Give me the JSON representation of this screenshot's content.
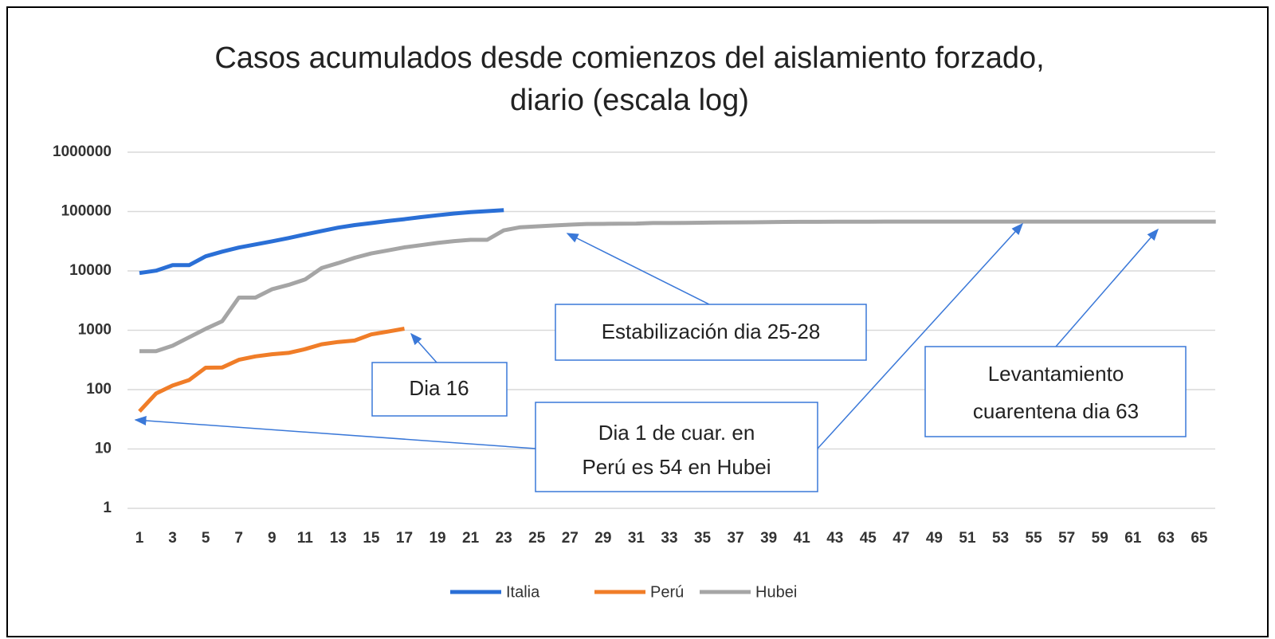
{
  "chart_data": {
    "type": "line",
    "title": [
      "Casos acumulados desde comienzos del aislamiento forzado,",
      "diario (escala log)"
    ],
    "categories": [
      1,
      null,
      3,
      null,
      5,
      null,
      7,
      null,
      9,
      null,
      11,
      null,
      13,
      null,
      15,
      null,
      17,
      null,
      19,
      null,
      21,
      null,
      23,
      null,
      25,
      null,
      27,
      null,
      29,
      null,
      31,
      null,
      33,
      null,
      35,
      null,
      37,
      null,
      39,
      null,
      41,
      null,
      43,
      null,
      45,
      null,
      47,
      null,
      49,
      null,
      51,
      null,
      53,
      null,
      55,
      null,
      57,
      null,
      59,
      null,
      61,
      null,
      63,
      null,
      65,
      null
    ],
    "series": [
      {
        "name": "Italia",
        "color": "#2a6fd6",
        "values": [
          9200,
          10100,
          12500,
          12500,
          17600,
          21100,
          24700,
          27900,
          31500,
          35700,
          41000,
          47000,
          53600,
          59100,
          63900,
          69200,
          74400,
          80600,
          86500,
          92500,
          97700,
          101700,
          105800,
          null,
          null,
          null,
          null,
          null,
          null,
          null,
          null,
          null,
          null,
          null,
          null,
          null,
          null,
          null,
          null,
          null,
          null,
          null,
          null,
          null,
          null,
          null,
          null,
          null,
          null,
          null,
          null,
          null,
          null,
          null,
          null,
          null,
          null,
          null,
          null,
          null,
          null,
          null,
          null,
          null,
          null,
          null
        ]
      },
      {
        "name": "Perú",
        "color": "#f07d28",
        "values": [
          43,
          86,
          117,
          145,
          234,
          236,
          318,
          363,
          395,
          416,
          480,
          580,
          635,
          671,
          852,
          950,
          1065,
          null,
          null,
          null,
          null,
          null,
          null,
          null,
          null,
          null,
          null,
          null,
          null,
          null,
          null,
          null,
          null,
          null,
          null,
          null,
          null,
          null,
          null,
          null,
          null,
          null,
          null,
          null,
          null,
          null,
          null,
          null,
          null,
          null,
          null,
          null,
          null,
          null,
          null,
          null,
          null,
          null,
          null,
          null,
          null,
          null,
          null,
          null,
          null,
          null
        ]
      },
      {
        "name": "Hubei",
        "color": "#a5a5a5",
        "values": [
          444,
          444,
          549,
          761,
          1058,
          1423,
          3554,
          3554,
          4903,
          5806,
          7153,
          11177,
          13522,
          16678,
          19665,
          22112,
          24953,
          27100,
          29631,
          31728,
          33366,
          33366,
          48206,
          54406,
          56249,
          58182,
          59989,
          61682,
          62031,
          62442,
          62662,
          64084,
          64084,
          64287,
          64786,
          65187,
          65596,
          65914,
          66337,
          66907,
          67103,
          67217,
          67332,
          67466,
          67592,
          67666,
          67707,
          67743,
          67760,
          67773,
          67781,
          67786,
          67790,
          67794,
          67798,
          67799,
          67800,
          67800,
          67801,
          67801,
          67801,
          67802,
          67802,
          67803,
          67803,
          67803
        ]
      }
    ],
    "ylim": [
      1,
      1000000
    ],
    "yticks": [
      1,
      10,
      100,
      1000,
      10000,
      100000,
      1000000
    ],
    "log_y": true,
    "grid": true,
    "legend": "bottom",
    "annotations": [
      {
        "lines": [
          "Estabilización dia 25-28"
        ]
      },
      {
        "lines": [
          "Dia 16"
        ]
      },
      {
        "lines": [
          "Dia 1 de cuar. en",
          "Perú es 54  en Hubei"
        ]
      },
      {
        "lines": [
          "Levantamiento",
          "cuarentena dia 63"
        ]
      }
    ]
  }
}
